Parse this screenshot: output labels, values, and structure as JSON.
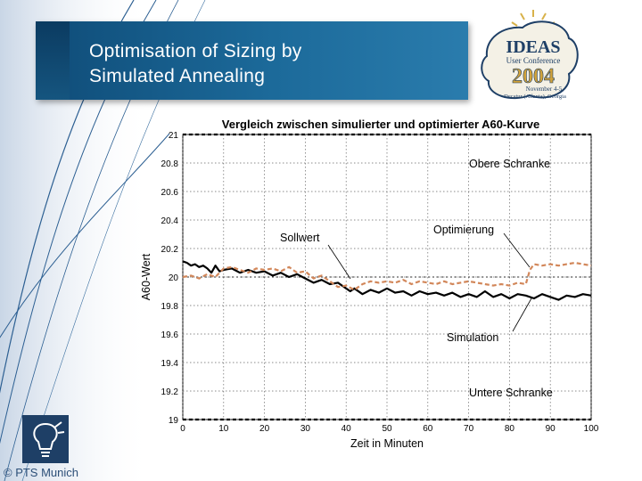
{
  "slide": {
    "title": "Optimisation of Sizing by\nSimulated Annealing",
    "copyright": "© PTS Munich"
  },
  "logo": {
    "name": "IDEAS",
    "subtitle": "User Conference",
    "year": "2004",
    "dates": "November 4-5",
    "location": "Decatur (Atlanta), Georgia"
  },
  "colors": {
    "title_panel": "#1c6a9a",
    "simulation_line": "#000000",
    "optimierung_line": "#d2875a",
    "bound_line": "#000000"
  },
  "chart_data": {
    "type": "line",
    "title": "Vergleich zwischen simulierter und optimierter A60-Kurve",
    "xlabel": "Zeit in Minuten",
    "ylabel": "A60-Wert",
    "xlim": [
      0,
      100
    ],
    "ylim": [
      19.0,
      21.0
    ],
    "xticks": [
      "0",
      "10",
      "20",
      "30",
      "40",
      "50",
      "60",
      "70",
      "80",
      "90",
      "100"
    ],
    "yticks": [
      "21",
      "20.8",
      "20.6",
      "20.4",
      "20.2",
      "20",
      "19.8",
      "19.6",
      "19.4",
      "19.2",
      "19"
    ],
    "grid": true,
    "series": [
      {
        "name": "Obere Schranke",
        "style": "dashed",
        "x": [
          0,
          100
        ],
        "y": [
          21.0,
          21.0
        ]
      },
      {
        "name": "Untere Schranke",
        "style": "dashed",
        "x": [
          0,
          100
        ],
        "y": [
          19.0,
          19.0
        ]
      },
      {
        "name": "Sollwert",
        "style": "dashed",
        "x": [
          0,
          10,
          30,
          40,
          50,
          100
        ],
        "y": [
          20.0,
          20.0,
          20.0,
          20.0,
          20.0,
          20.0
        ]
      },
      {
        "name": "Simulation",
        "style": "solid",
        "x": [
          0,
          1,
          2,
          3,
          4,
          5,
          6,
          7,
          8,
          9,
          10,
          12,
          14,
          16,
          18,
          20,
          22,
          24,
          26,
          28,
          30,
          32,
          34,
          36,
          38,
          40,
          41,
          42,
          44,
          46,
          48,
          50,
          52,
          54,
          56,
          58,
          60,
          62,
          64,
          66,
          68,
          70,
          72,
          74,
          76,
          78,
          80,
          82,
          84,
          86,
          88,
          90,
          92,
          94,
          96,
          98,
          100
        ],
        "y": [
          20.11,
          20.1,
          20.08,
          20.09,
          20.07,
          20.08,
          20.06,
          20.03,
          20.08,
          20.04,
          20.05,
          20.06,
          20.03,
          20.05,
          20.03,
          20.04,
          20.01,
          20.03,
          20.0,
          20.02,
          19.99,
          19.96,
          19.98,
          19.95,
          19.96,
          19.92,
          19.9,
          19.92,
          19.88,
          19.91,
          19.89,
          19.92,
          19.89,
          19.9,
          19.87,
          19.9,
          19.88,
          19.89,
          19.87,
          19.89,
          19.86,
          19.88,
          19.86,
          19.9,
          19.86,
          19.88,
          19.85,
          19.88,
          19.87,
          19.85,
          19.88,
          19.86,
          19.84,
          19.87,
          19.86,
          19.88,
          19.87
        ]
      },
      {
        "name": "Optimierung",
        "style": "dashed",
        "x": [
          0,
          2,
          4,
          6,
          8,
          10,
          12,
          14,
          16,
          18,
          20,
          22,
          24,
          26,
          28,
          30,
          32,
          34,
          36,
          38,
          40,
          42,
          44,
          46,
          48,
          50,
          52,
          54,
          56,
          58,
          60,
          62,
          64,
          66,
          68,
          70,
          72,
          74,
          76,
          78,
          80,
          82,
          84,
          85,
          86,
          88,
          90,
          92,
          94,
          96,
          98,
          100
        ],
        "y": [
          20.0,
          20.01,
          19.99,
          20.02,
          20.0,
          20.06,
          20.07,
          20.05,
          20.03,
          20.06,
          20.05,
          20.06,
          20.04,
          20.07,
          20.03,
          20.04,
          19.99,
          20.01,
          19.97,
          19.93,
          19.94,
          19.91,
          19.95,
          19.97,
          19.96,
          19.97,
          19.96,
          19.98,
          19.95,
          19.97,
          19.96,
          19.95,
          19.97,
          19.95,
          19.96,
          19.97,
          19.96,
          19.95,
          19.94,
          19.95,
          19.94,
          19.96,
          19.95,
          20.05,
          20.09,
          20.08,
          20.09,
          20.08,
          20.09,
          20.1,
          20.09,
          20.08
        ]
      }
    ],
    "annotations": [
      "Obere Schranke",
      "Sollwert",
      "Optimierung",
      "Simulation",
      "Untere Schranke"
    ]
  }
}
